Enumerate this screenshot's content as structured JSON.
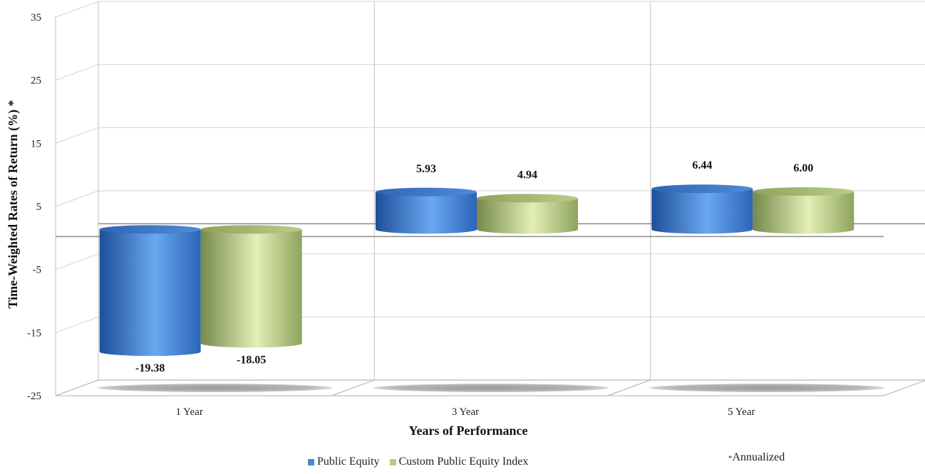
{
  "chart_data": {
    "type": "bar",
    "categories": [
      "1 Year",
      "3 Year",
      "5 Year"
    ],
    "series": [
      {
        "name": "Public Equity",
        "values": [
          -19.38,
          5.93,
          6.44
        ],
        "color": "#4a86d4"
      },
      {
        "name": "Custom Public Equity Index",
        "values": [
          -18.05,
          4.94,
          6.0
        ],
        "color": "#b5cc84"
      }
    ],
    "data_labels": [
      "-19.38",
      "5.93",
      "6.44",
      "-18.05",
      "4.94",
      "6.00"
    ],
    "xlabel": "Years of Performance",
    "ylabel": "Time-Weighted Rates of Return (%) *",
    "ylim": [
      -25,
      35
    ],
    "yticks": [
      35,
      25,
      15,
      5,
      -5,
      -15,
      -25
    ],
    "ytick_labels": [
      "35",
      "25",
      "15",
      "5",
      "-5",
      "-15",
      "-25"
    ],
    "grid": true,
    "legend_position": "bottom-center",
    "style": "3d-cylinder"
  },
  "note": {
    "star": "*",
    "text": "Annualized"
  }
}
